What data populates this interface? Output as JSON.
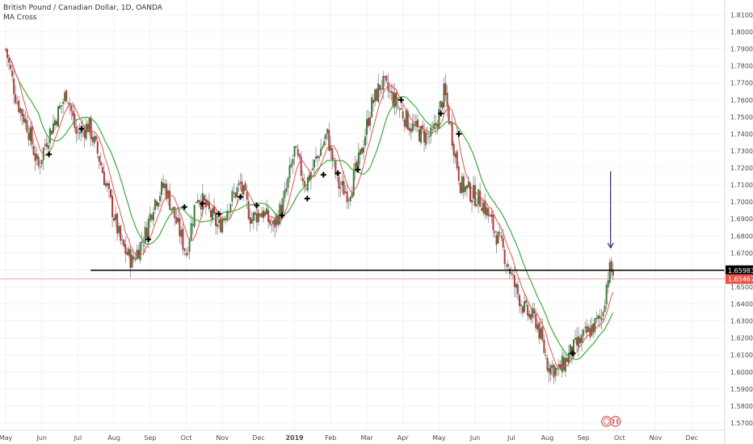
{
  "legend": {
    "symbol_title": "British Pound / Canadian Dollar, 1D, OANDA",
    "indicator": "MA Cross"
  },
  "colors": {
    "up": "#3d7a3d",
    "down": "#b13a3a",
    "wick": "#8a8a8a",
    "fast_ma": "#e8544a",
    "slow_ma": "#3cae3c",
    "support_line": "#000000",
    "current_line": "#e8544a",
    "arrow": "#1f2a7a",
    "grid": "#f2f3f5",
    "axis_text": "#4a4a4a"
  },
  "icons": [
    "cross-marker-icon",
    "down-arrow-icon",
    "event-icon",
    "flag-icon"
  ],
  "chart_data": {
    "type": "candlestick",
    "title": "British Pound / Canadian Dollar, 1D, OANDA",
    "indicator": "MA Cross",
    "x_ticks": [
      "May",
      "Jun",
      "Jul",
      "Aug",
      "Sep",
      "Oct",
      "Nov",
      "Dec",
      "2019",
      "Feb",
      "Mar",
      "Apr",
      "May",
      "Jun",
      "Jul",
      "Aug",
      "Sep",
      "Oct",
      "Nov",
      "Dec"
    ],
    "y_ticks": [
      "1.81000",
      "1.80000",
      "1.79000",
      "1.78000",
      "1.77000",
      "1.76000",
      "1.75000",
      "1.74000",
      "1.73000",
      "1.72000",
      "1.71000",
      "1.70000",
      "1.69000",
      "1.68000",
      "1.67000",
      "1.66000",
      "1.65000",
      "1.64000",
      "1.63000",
      "1.62000",
      "1.61000",
      "1.60000",
      "1.59000",
      "1.58000",
      "1.57000"
    ],
    "ylim": [
      1.567,
      1.815
    ],
    "price_labels": [
      {
        "value": 1.65983,
        "text": "1.65983",
        "color": "#000000"
      },
      {
        "value": 1.65467,
        "text": "1.65467",
        "color": "#e8544a"
      }
    ],
    "horizontal_lines": [
      {
        "name": "support",
        "value": 1.65983
      },
      {
        "name": "current",
        "value": 1.65467
      }
    ],
    "price_path": [
      {
        "month": 0,
        "price": 1.79
      },
      {
        "month": 0.3,
        "price": 1.76
      },
      {
        "month": 0.6,
        "price": 1.745
      },
      {
        "month": 0.9,
        "price": 1.72
      },
      {
        "month": 1.1,
        "price": 1.735
      },
      {
        "month": 1.4,
        "price": 1.75
      },
      {
        "month": 1.7,
        "price": 1.765
      },
      {
        "month": 1.95,
        "price": 1.74
      },
      {
        "month": 2.3,
        "price": 1.745
      },
      {
        "month": 2.6,
        "price": 1.725
      },
      {
        "month": 2.9,
        "price": 1.7
      },
      {
        "month": 3.2,
        "price": 1.675
      },
      {
        "month": 3.5,
        "price": 1.665
      },
      {
        "month": 3.85,
        "price": 1.68
      },
      {
        "month": 4.1,
        "price": 1.7
      },
      {
        "month": 4.4,
        "price": 1.71
      },
      {
        "month": 4.7,
        "price": 1.69
      },
      {
        "month": 5.0,
        "price": 1.67
      },
      {
        "month": 5.3,
        "price": 1.705
      },
      {
        "month": 5.6,
        "price": 1.695
      },
      {
        "month": 5.9,
        "price": 1.685
      },
      {
        "month": 6.2,
        "price": 1.7
      },
      {
        "month": 6.5,
        "price": 1.71
      },
      {
        "month": 6.8,
        "price": 1.69
      },
      {
        "month": 7.1,
        "price": 1.695
      },
      {
        "month": 7.4,
        "price": 1.685
      },
      {
        "month": 7.7,
        "price": 1.7
      },
      {
        "month": 8.0,
        "price": 1.73
      },
      {
        "month": 8.3,
        "price": 1.71
      },
      {
        "month": 8.6,
        "price": 1.725
      },
      {
        "month": 8.9,
        "price": 1.74
      },
      {
        "month": 9.2,
        "price": 1.71
      },
      {
        "month": 9.5,
        "price": 1.705
      },
      {
        "month": 9.8,
        "price": 1.725
      },
      {
        "month": 10.1,
        "price": 1.755
      },
      {
        "month": 10.4,
        "price": 1.77
      },
      {
        "month": 10.6,
        "price": 1.765
      },
      {
        "month": 10.9,
        "price": 1.755
      },
      {
        "month": 11.2,
        "price": 1.745
      },
      {
        "month": 11.5,
        "price": 1.74
      },
      {
        "month": 11.8,
        "price": 1.738
      },
      {
        "month": 12.0,
        "price": 1.752
      },
      {
        "month": 12.15,
        "price": 1.765
      },
      {
        "month": 12.35,
        "price": 1.74
      },
      {
        "month": 12.6,
        "price": 1.71
      },
      {
        "month": 12.9,
        "price": 1.705
      },
      {
        "month": 13.2,
        "price": 1.7
      },
      {
        "month": 13.5,
        "price": 1.685
      },
      {
        "month": 13.8,
        "price": 1.67
      },
      {
        "month": 14.1,
        "price": 1.65
      },
      {
        "month": 14.4,
        "price": 1.635
      },
      {
        "month": 14.7,
        "price": 1.63
      },
      {
        "month": 15.0,
        "price": 1.605
      },
      {
        "month": 15.3,
        "price": 1.6
      },
      {
        "month": 15.6,
        "price": 1.61
      },
      {
        "month": 15.9,
        "price": 1.618
      },
      {
        "month": 16.2,
        "price": 1.625
      },
      {
        "month": 16.5,
        "price": 1.632
      },
      {
        "month": 16.7,
        "price": 1.66
      },
      {
        "month": 16.85,
        "price": 1.658
      }
    ],
    "cross_markers": [
      {
        "month": 1.2,
        "price": 1.728
      },
      {
        "month": 2.1,
        "price": 1.743
      },
      {
        "month": 3.95,
        "price": 1.678
      },
      {
        "month": 4.95,
        "price": 1.697
      },
      {
        "month": 5.45,
        "price": 1.699
      },
      {
        "month": 5.9,
        "price": 1.693
      },
      {
        "month": 6.5,
        "price": 1.703
      },
      {
        "month": 6.95,
        "price": 1.698
      },
      {
        "month": 7.65,
        "price": 1.692
      },
      {
        "month": 8.35,
        "price": 1.702
      },
      {
        "month": 8.8,
        "price": 1.716
      },
      {
        "month": 9.2,
        "price": 1.717
      },
      {
        "month": 9.75,
        "price": 1.719
      },
      {
        "month": 10.95,
        "price": 1.76
      },
      {
        "month": 12.05,
        "price": 1.752
      },
      {
        "month": 12.55,
        "price": 1.74
      },
      {
        "month": 15.7,
        "price": 1.611
      }
    ],
    "arrow": {
      "month": 16.75,
      "from": 1.718,
      "to": 1.673
    },
    "support_from_month": 2.35
  }
}
